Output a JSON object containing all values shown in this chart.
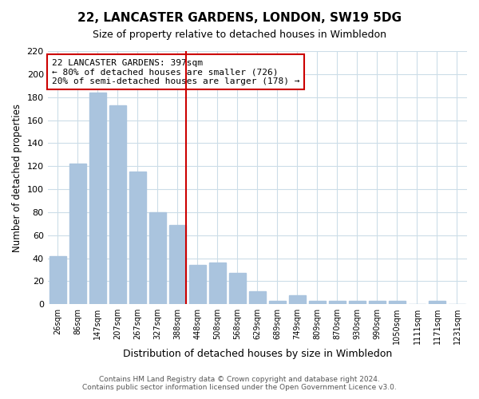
{
  "title": "22, LANCASTER GARDENS, LONDON, SW19 5DG",
  "subtitle": "Size of property relative to detached houses in Wimbledon",
  "xlabel": "Distribution of detached houses by size in Wimbledon",
  "ylabel": "Number of detached properties",
  "bar_labels": [
    "26sqm",
    "86sqm",
    "147sqm",
    "207sqm",
    "267sqm",
    "327sqm",
    "388sqm",
    "448sqm",
    "508sqm",
    "568sqm",
    "629sqm",
    "689sqm",
    "749sqm",
    "809sqm",
    "870sqm",
    "930sqm",
    "990sqm",
    "1050sqm",
    "1111sqm",
    "1171sqm",
    "1231sqm"
  ],
  "bar_values": [
    42,
    122,
    184,
    173,
    115,
    80,
    69,
    34,
    36,
    27,
    11,
    3,
    8,
    3,
    3,
    3,
    3,
    3,
    0,
    3,
    0
  ],
  "bar_color": "#aac4de",
  "vline_x": 6.425,
  "vline_color": "#cc0000",
  "ylim": [
    0,
    220
  ],
  "yticks": [
    0,
    20,
    40,
    60,
    80,
    100,
    120,
    140,
    160,
    180,
    200,
    220
  ],
  "annotation_title": "22 LANCASTER GARDENS: 397sqm",
  "annotation_line1": "← 80% of detached houses are smaller (726)",
  "annotation_line2": "20% of semi-detached houses are larger (178) →",
  "annotation_box_color": "#ffffff",
  "annotation_box_edge": "#cc0000",
  "footer_line1": "Contains HM Land Registry data © Crown copyright and database right 2024.",
  "footer_line2": "Contains public sector information licensed under the Open Government Licence v3.0.",
  "background_color": "#ffffff",
  "grid_color": "#ccdde8",
  "fig_width": 6.0,
  "fig_height": 5.0
}
